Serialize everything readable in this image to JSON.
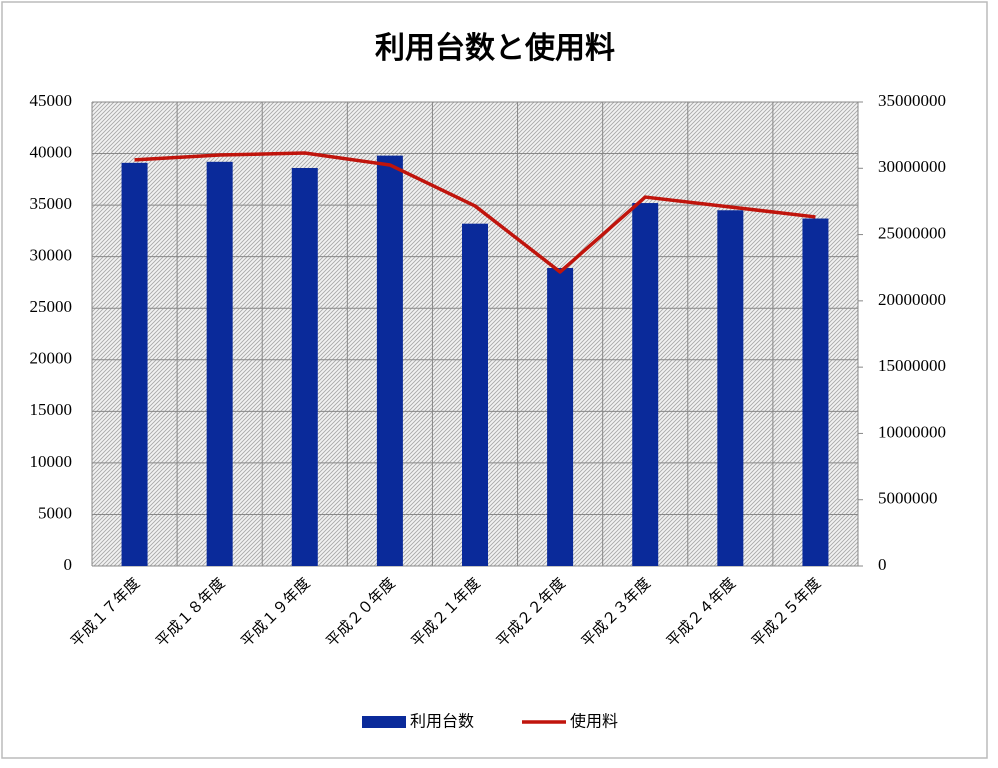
{
  "chart_data": {
    "type": "bar-line",
    "title": "利用台数と使用料",
    "categories": [
      "平成１７年度",
      "平成１８年度",
      "平成１９年度",
      "平成２０年度",
      "平成２１年度",
      "平成２２年度",
      "平成２３年度",
      "平成２４年度",
      "平成２５年度"
    ],
    "series": [
      {
        "name": "利用台数",
        "type": "bar",
        "color": "#0a2a9a",
        "values": [
          39100,
          39200,
          38600,
          39800,
          33200,
          28900,
          35200,
          34500,
          33700
        ]
      },
      {
        "name": "使用料",
        "type": "line",
        "color": "#c0140c",
        "axis": "y2",
        "values": [
          30630000,
          31000000,
          31150000,
          30250000,
          27160000,
          22180000,
          27830000,
          27080000,
          26330000
        ]
      }
    ],
    "ylim": [
      0,
      45000
    ],
    "yticks": [
      0,
      5000,
      10000,
      15000,
      20000,
      25000,
      30000,
      35000,
      40000,
      45000
    ],
    "y2lim": [
      0,
      35000000
    ],
    "y2ticks": [
      0,
      5000000,
      10000000,
      15000000,
      20000000,
      25000000,
      30000000,
      35000000
    ],
    "grid": true,
    "legend": "bottom"
  }
}
